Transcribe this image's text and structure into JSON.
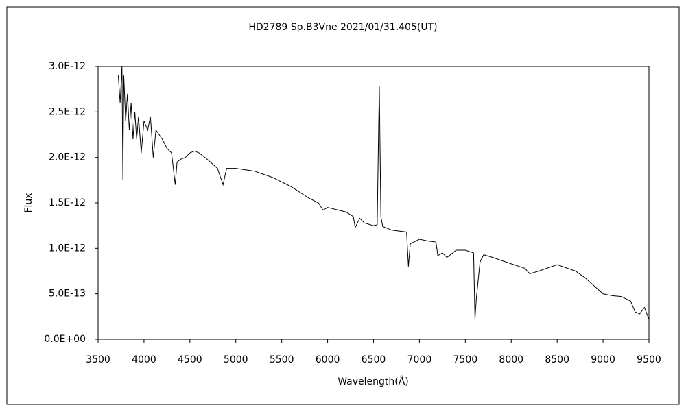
{
  "chart_data": {
    "type": "line",
    "title": "HD2789  Sp.B3Vne   2021/01/31.405(UT)",
    "x_label": "Wavelength(Å)",
    "y_label": "Flux",
    "xlim": [
      3500,
      9500
    ],
    "xticks": [
      3500,
      4000,
      4500,
      5000,
      5500,
      6000,
      6500,
      7000,
      7500,
      8000,
      8500,
      9000,
      9500
    ],
    "ylim": [
      0,
      3e-12
    ],
    "yticks": [
      {
        "value": 0,
        "label": "0.0E+00"
      },
      {
        "value": 5e-13,
        "label": "5.0E-13"
      },
      {
        "value": 1e-12,
        "label": "1.0E-12"
      },
      {
        "value": 1.5e-12,
        "label": "1.5E-12"
      },
      {
        "value": 2e-12,
        "label": "2.0E-12"
      },
      {
        "value": 2.5e-12,
        "label": "2.5E-12"
      },
      {
        "value": 3e-12,
        "label": "3.0E-12"
      }
    ],
    "series": [
      {
        "color": "#000000",
        "x": [
          3720,
          3740,
          3760,
          3770,
          3780,
          3800,
          3820,
          3840,
          3860,
          3880,
          3900,
          3920,
          3940,
          3970,
          4000,
          4040,
          4070,
          4101,
          4130,
          4200,
          4250,
          4300,
          4340,
          4360,
          4400,
          4450,
          4500,
          4550,
          4600,
          4700,
          4800,
          4861,
          4900,
          5000,
          5200,
          5400,
          5600,
          5800,
          5900,
          5950,
          6000,
          6200,
          6280,
          6300,
          6350,
          6400,
          6500,
          6540,
          6555,
          6563,
          6570,
          6580,
          6600,
          6700,
          6860,
          6880,
          6900,
          7000,
          7100,
          7180,
          7200,
          7250,
          7300,
          7400,
          7500,
          7590,
          7605,
          7620,
          7660,
          7700,
          7800,
          8000,
          8150,
          8200,
          8300,
          8500,
          8700,
          8800,
          9000,
          9100,
          9200,
          9300,
          9350,
          9400,
          9450,
          9500
        ],
        "values": [
          2.9e-12,
          2.6e-12,
          3e-12,
          1.75e-12,
          2.9e-12,
          2.4e-12,
          2.7e-12,
          2.3e-12,
          2.6e-12,
          2.2e-12,
          2.5e-12,
          2.2e-12,
          2.45e-12,
          2.05e-12,
          2.4e-12,
          2.3e-12,
          2.45e-12,
          2e-12,
          2.3e-12,
          2.2e-12,
          2.1e-12,
          2.05e-12,
          1.7e-12,
          1.95e-12,
          1.98e-12,
          2e-12,
          2.05e-12,
          2.07e-12,
          2.05e-12,
          1.97e-12,
          1.88e-12,
          1.7e-12,
          1.88e-12,
          1.88e-12,
          1.85e-12,
          1.78e-12,
          1.68e-12,
          1.55e-12,
          1.5e-12,
          1.42e-12,
          1.45e-12,
          1.4e-12,
          1.35e-12,
          1.23e-12,
          1.33e-12,
          1.28e-12,
          1.25e-12,
          1.26e-12,
          2.3e-12,
          2.78e-12,
          2.2e-12,
          1.35e-12,
          1.24e-12,
          1.2e-12,
          1.18e-12,
          8e-13,
          1.05e-12,
          1.1e-12,
          1.08e-12,
          1.07e-12,
          9.2e-13,
          9.5e-13,
          9e-13,
          9.8e-13,
          9.8e-13,
          9.5e-13,
          2.2e-13,
          4.5e-13,
          8.5e-13,
          9.3e-13,
          9e-13,
          8.3e-13,
          7.8e-13,
          7.2e-13,
          7.5e-13,
          8.2e-13,
          7.5e-13,
          6.8e-13,
          5e-13,
          4.8e-13,
          4.7e-13,
          4.2e-13,
          3e-13,
          2.8e-13,
          3.5e-13,
          2.2e-13
        ]
      }
    ]
  }
}
